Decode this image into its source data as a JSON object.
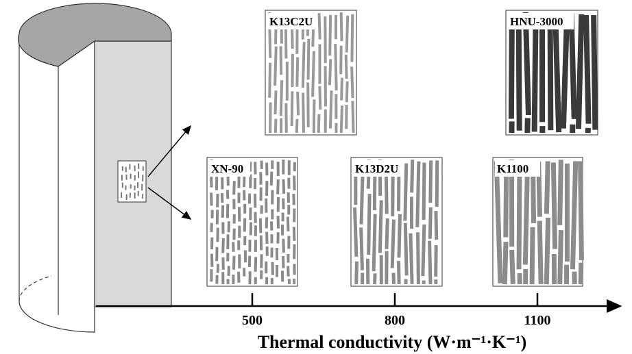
{
  "panels": [
    {
      "label": "K13C2U"
    },
    {
      "label": "HNU-3000"
    },
    {
      "label": "XN-90"
    },
    {
      "label": "K13D2U"
    },
    {
      "label": "K1100"
    }
  ],
  "axis": {
    "ticks": [
      "500",
      "800",
      "1100"
    ],
    "label": "Thermal conductivity (W·m⁻¹·K⁻¹)"
  }
}
